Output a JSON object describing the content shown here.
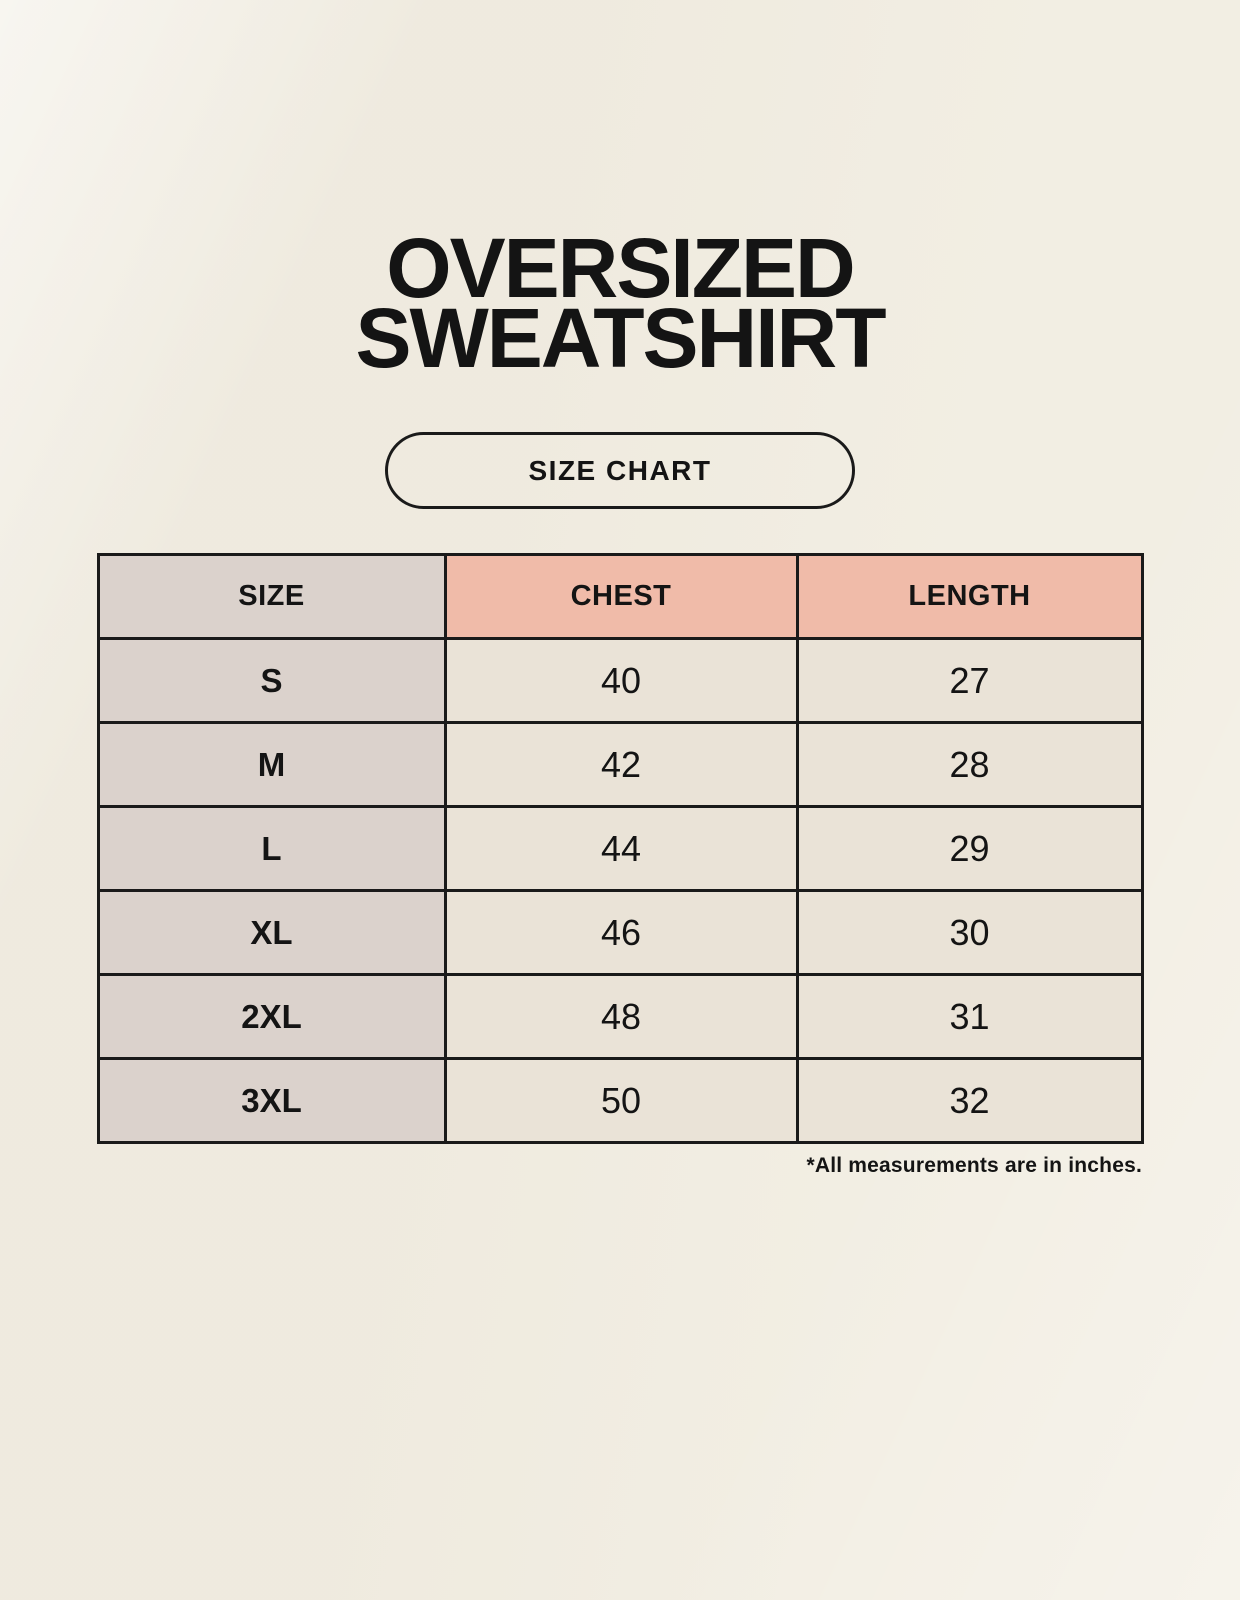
{
  "page": {
    "title_line1": "OVERSIZED",
    "title_line2": "SWEATSHIRT",
    "badge_label": "SIZE CHART",
    "footnote": "*All measurements are in inches."
  },
  "colors": {
    "background": "#F2EEE3",
    "header_pink": "#F0BBA9",
    "size_column_gray": "#DBD2CC",
    "value_cell_cream": "#EAE3D7",
    "table_border": "#1A1A1A",
    "text": "#141414"
  },
  "table": {
    "columns": [
      "SIZE",
      "CHEST",
      "LENGTH"
    ],
    "rows": [
      {
        "size": "S",
        "chest": "40",
        "length": "27"
      },
      {
        "size": "M",
        "chest": "42",
        "length": "28"
      },
      {
        "size": "L",
        "chest": "44",
        "length": "29"
      },
      {
        "size": "XL",
        "chest": "46",
        "length": "30"
      },
      {
        "size": "2XL",
        "chest": "48",
        "length": "31"
      },
      {
        "size": "3XL",
        "chest": "50",
        "length": "32"
      }
    ]
  },
  "chart_data": {
    "type": "table",
    "title": "OVERSIZED SWEATSHIRT SIZE CHART",
    "columns": [
      "SIZE",
      "CHEST",
      "LENGTH"
    ],
    "categories": [
      "S",
      "M",
      "L",
      "XL",
      "2XL",
      "3XL"
    ],
    "series": [
      {
        "name": "CHEST",
        "values": [
          40,
          42,
          44,
          46,
          48,
          50
        ]
      },
      {
        "name": "LENGTH",
        "values": [
          27,
          28,
          29,
          30,
          31,
          32
        ]
      }
    ],
    "units": "inches"
  }
}
